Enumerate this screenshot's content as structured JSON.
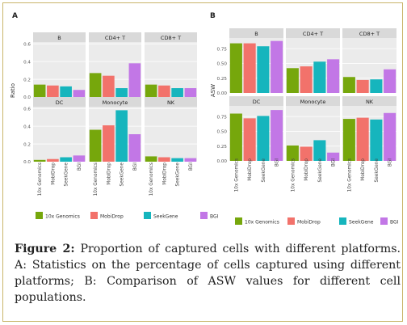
{
  "colors": {
    "10x Genomics": "#76a70c",
    "MobiDrop": "#f2726b",
    "SeekGene": "#16b5bd",
    "BGI": "#c277e6"
  },
  "caption": {
    "label": "Figure 2:",
    "text": " Proportion of captured cells with different platforms. A: Statistics on the percentage of cells captured using different platforms; B: Comparison of ASW values for different cell populations."
  },
  "chart_data": [
    {
      "panel_label": "A",
      "type": "bar",
      "ylabel": "Ratio",
      "ylim": [
        0,
        0.62
      ],
      "yticks": [
        "0.0",
        "0.2",
        "0.4",
        "0.6"
      ],
      "categories": [
        "10x Genomics",
        "MobiDrop",
        "SeekGene",
        "BGI"
      ],
      "facets": [
        {
          "title": "B",
          "values": [
            0.14,
            0.13,
            0.12,
            0.08
          ]
        },
        {
          "title": "CD4+ T",
          "values": [
            0.27,
            0.24,
            0.1,
            0.38
          ]
        },
        {
          "title": "CD8+ T",
          "values": [
            0.14,
            0.13,
            0.1,
            0.1
          ]
        },
        {
          "title": "DC",
          "values": [
            0.02,
            0.03,
            0.05,
            0.07
          ]
        },
        {
          "title": "Monocyte",
          "values": [
            0.36,
            0.41,
            0.58,
            0.31
          ]
        },
        {
          "title": "NK",
          "values": [
            0.06,
            0.05,
            0.04,
            0.04
          ]
        }
      ],
      "legend": [
        "10x Genomics",
        "MobiDrop",
        "SeekGene",
        "BGI"
      ]
    },
    {
      "panel_label": "B",
      "type": "bar",
      "ylabel": "ASW",
      "ylim": [
        0,
        0.93
      ],
      "yticks": [
        "0.00",
        "0.25",
        "0.50",
        "0.75"
      ],
      "categories": [
        "10x Genomics",
        "MobiDrop",
        "SeekGene",
        "BGI"
      ],
      "facets": [
        {
          "title": "B",
          "values": [
            0.84,
            0.84,
            0.79,
            0.88
          ]
        },
        {
          "title": "CD4+ T",
          "values": [
            0.42,
            0.45,
            0.53,
            0.57
          ]
        },
        {
          "title": "CD8+ T",
          "values": [
            0.27,
            0.22,
            0.23,
            0.4
          ]
        },
        {
          "title": "DC",
          "values": [
            0.8,
            0.72,
            0.76,
            0.86
          ]
        },
        {
          "title": "Monocyte",
          "values": [
            0.26,
            0.24,
            0.35,
            0.14
          ]
        },
        {
          "title": "NK",
          "values": [
            0.71,
            0.73,
            0.7,
            0.81
          ]
        }
      ],
      "legend": [
        "10x Genomics",
        "MobiDrop",
        "SeekGene",
        "BGI"
      ]
    }
  ]
}
